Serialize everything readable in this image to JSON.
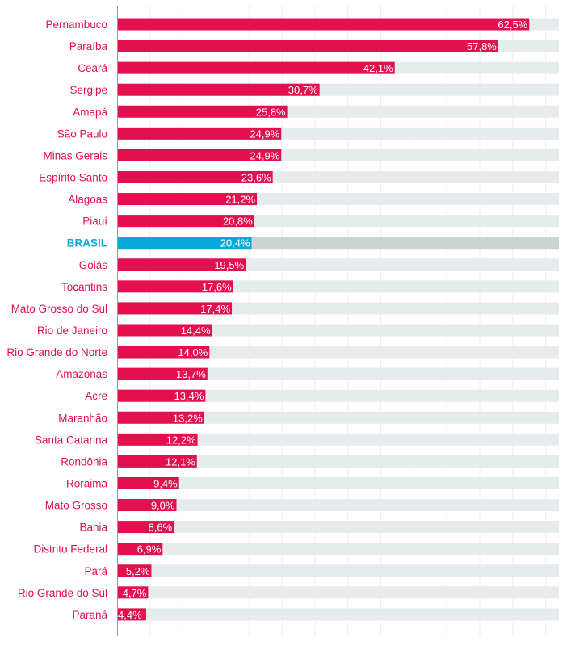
{
  "chart_data": {
    "type": "bar",
    "orientation": "horizontal",
    "title": "",
    "xlabel": "",
    "ylabel": "",
    "xlim": [
      0,
      67
    ],
    "grid": true,
    "grid_step": 5,
    "colors": {
      "bar": "#e40f4f",
      "highlight_bar": "#0aa9dc",
      "track": "#e6ecee",
      "highlight_track": "#cdd3d2",
      "label": "#e40f4f",
      "highlight_label": "#0aa9dc",
      "grid": "#eeeeee",
      "axis": "#999999"
    },
    "highlight": "BRASIL",
    "categories": [
      "Pernambuco",
      "Paraíba",
      "Ceará",
      "Sergipe",
      "Amapá",
      "São Paulo",
      "Minas Gerais",
      "Espírito Santo",
      "Alagoas",
      "Piauí",
      "BRASIL",
      "Goiás",
      "Tocantins",
      "Mato Grosso do Sul",
      "Rio de Janeiro",
      "Rio Grande do Norte",
      "Amazonas",
      "Acre",
      "Maranhão",
      "Santa Catarina",
      "Rondônia",
      "Roraima",
      "Mato Grosso",
      "Bahia",
      "Distrito Federal",
      "Pará",
      "Rio Grande do Sul",
      "Paraná"
    ],
    "values": [
      62.5,
      57.8,
      42.1,
      30.7,
      25.8,
      24.9,
      24.9,
      23.6,
      21.2,
      20.8,
      20.4,
      19.5,
      17.6,
      17.4,
      14.4,
      14.0,
      13.7,
      13.4,
      13.2,
      12.2,
      12.1,
      9.4,
      9.0,
      8.6,
      6.9,
      5.2,
      4.7,
      4.4
    ],
    "value_labels": [
      "62,5%",
      "57,8%",
      "42,1%",
      "30,7%",
      "25,8%",
      "24,9%",
      "24,9%",
      "23,6%",
      "21,2%",
      "20,8%",
      "20,4%",
      "19,5%",
      "17,6%",
      "17,4%",
      "14,4%",
      "14,0%",
      "13,7%",
      "13,4%",
      "13,2%",
      "12,2%",
      "12,1%",
      "9,4%",
      "9,0%",
      "8,6%",
      "6,9%",
      "5,2%",
      "4,7%",
      "4,4%"
    ]
  }
}
